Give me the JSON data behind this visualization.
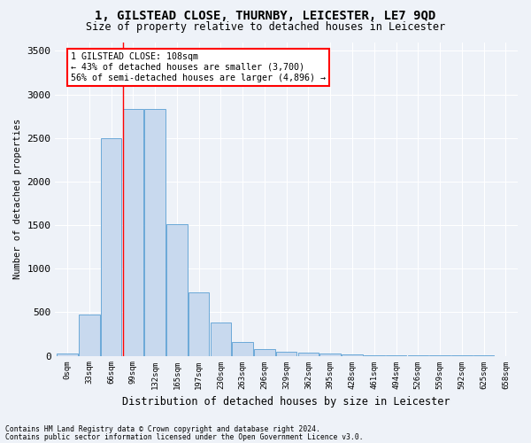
{
  "title": "1, GILSTEAD CLOSE, THURNBY, LEICESTER, LE7 9QD",
  "subtitle": "Size of property relative to detached houses in Leicester",
  "xlabel": "Distribution of detached houses by size in Leicester",
  "ylabel": "Number of detached properties",
  "bar_color": "#c8d9ee",
  "bar_edge_color": "#5a9fd4",
  "background_color": "#eef2f8",
  "grid_color": "#ffffff",
  "bin_labels": [
    "0sqm",
    "33sqm",
    "66sqm",
    "99sqm",
    "132sqm",
    "165sqm",
    "197sqm",
    "230sqm",
    "263sqm",
    "296sqm",
    "329sqm",
    "362sqm",
    "395sqm",
    "428sqm",
    "461sqm",
    "494sqm",
    "526sqm",
    "559sqm",
    "592sqm",
    "625sqm",
    "658sqm"
  ],
  "bar_heights": [
    25,
    470,
    2500,
    2830,
    2830,
    1510,
    730,
    380,
    155,
    80,
    45,
    35,
    30,
    20,
    10,
    5,
    3,
    2,
    1,
    1,
    0
  ],
  "vline_x": 3,
  "annotation_title": "1 GILSTEAD CLOSE: 108sqm",
  "annotation_line1": "← 43% of detached houses are smaller (3,700)",
  "annotation_line2": "56% of semi-detached houses are larger (4,896) →",
  "ylim": [
    0,
    3600
  ],
  "yticks": [
    0,
    500,
    1000,
    1500,
    2000,
    2500,
    3000,
    3500
  ],
  "footer1": "Contains HM Land Registry data © Crown copyright and database right 2024.",
  "footer2": "Contains public sector information licensed under the Open Government Licence v3.0."
}
